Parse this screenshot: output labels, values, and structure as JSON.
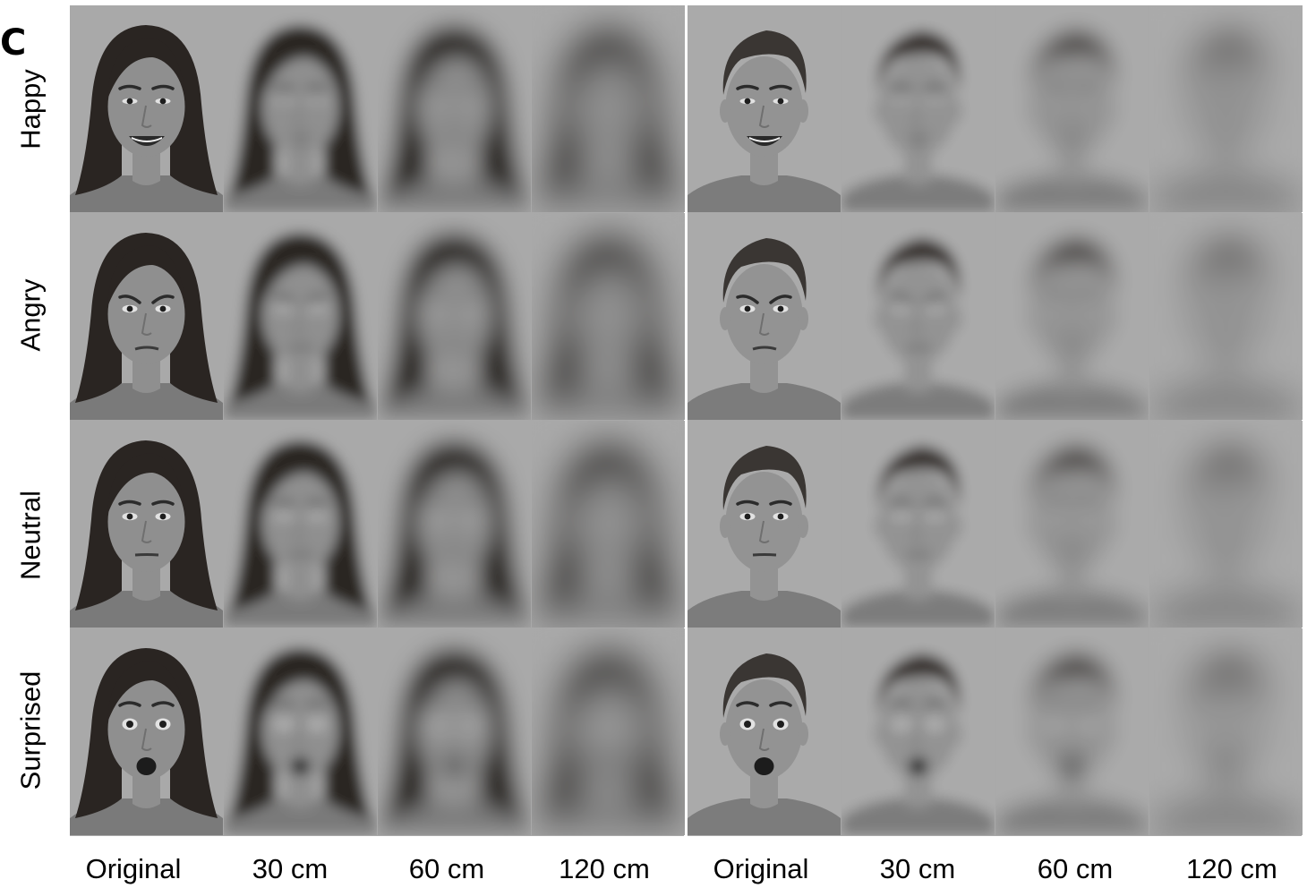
{
  "panel_label": "C",
  "row_labels": [
    "Happy",
    "Angry",
    "Neutral",
    "Surprised"
  ],
  "column_labels": [
    "Original",
    "30 cm",
    "60 cm",
    "120 cm",
    "Original",
    "30 cm",
    "60 cm",
    "120 cm"
  ],
  "faces": [
    {
      "identity": "female",
      "hair_color": "#2a2522",
      "skin_color": "#8f8f8f",
      "shirt_color": "#7a7a7a",
      "background": "#a9a9a9"
    },
    {
      "identity": "male",
      "hair_color": "#3a3633",
      "skin_color": "#939393",
      "shirt_color": "#7c7c7c",
      "background": "#aaaaaa"
    }
  ],
  "blur_levels": [
    0,
    7,
    12,
    20
  ]
}
